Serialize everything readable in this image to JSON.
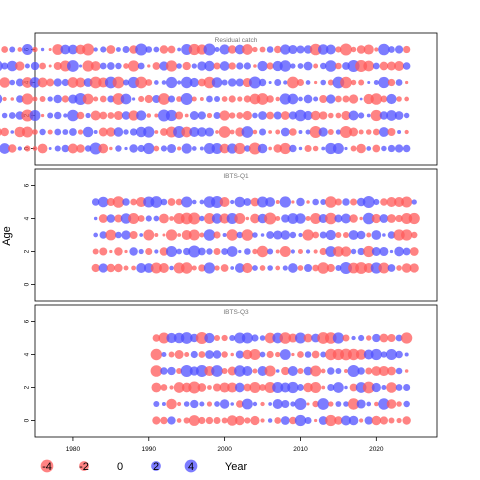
{
  "chart_data": {
    "type": "scatter",
    "subtype": "bubble-residuals",
    "ylabel": "Age",
    "x_ticks": [
      1980,
      1990,
      2000,
      2010,
      2020
    ],
    "y_ticks": [
      0,
      2,
      4,
      6
    ],
    "xlim": [
      1975,
      2028
    ],
    "ylim": [
      -1,
      7
    ],
    "colors": {
      "negative": "#FF5A5A",
      "positive": "#5050FF",
      "frame": "#000000"
    },
    "panels": [
      {
        "title": "Residual catch",
        "year_start": 1957,
        "year_end": 2024,
        "ages": [
          0,
          1,
          2,
          3,
          4,
          5,
          6
        ],
        "seed": 11
      },
      {
        "title": "IBTS-Q1",
        "year_start": 1983,
        "year_end": 2025,
        "ages": [
          1,
          2,
          3,
          4,
          5
        ],
        "seed": 23
      },
      {
        "title": "IBTS-Q3",
        "year_start": 1991,
        "year_end": 2024,
        "ages": [
          0,
          1,
          2,
          3,
          4,
          5
        ],
        "seed": 37
      }
    ],
    "legend": {
      "entries": [
        {
          "value": -4,
          "label": "-4"
        },
        {
          "value": -2,
          "label": "-2"
        },
        {
          "value": 0,
          "label": "0"
        },
        {
          "value": 2,
          "label": "2"
        },
        {
          "value": 4,
          "label": "4"
        }
      ],
      "xlabel": "Year"
    }
  }
}
